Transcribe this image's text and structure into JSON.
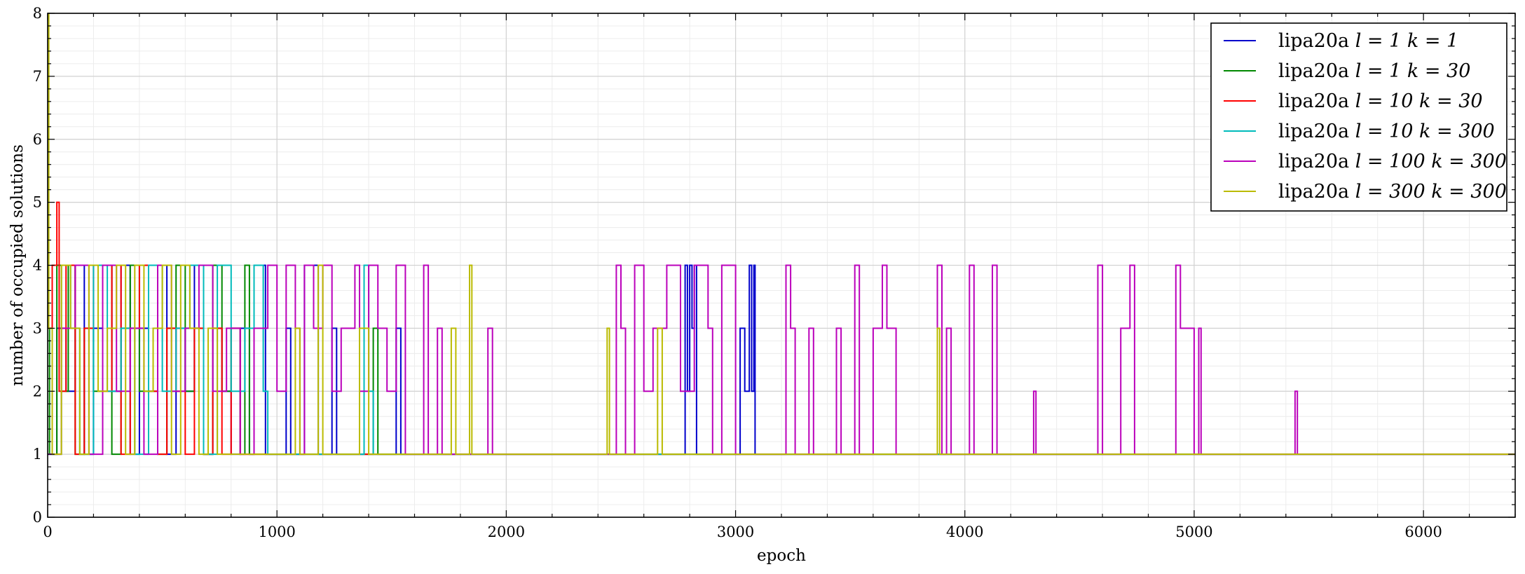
{
  "chart_data": {
    "type": "line",
    "title": "",
    "xlabel": "epoch",
    "ylabel": "number of occupied solutions",
    "xlim": [
      0,
      6400
    ],
    "ylim": [
      0,
      8
    ],
    "x_ticks": [
      0,
      1000,
      2000,
      3000,
      4000,
      5000,
      6000
    ],
    "y_ticks": [
      0,
      1,
      2,
      3,
      4,
      5,
      6,
      7,
      8
    ],
    "grid": true,
    "legend_position": "top-right",
    "series": [
      {
        "name": "lipa20a",
        "legend_params": "l = 1 k = 1",
        "color": "#0000cc",
        "points": [
          [
            0,
            1
          ],
          [
            40,
            3
          ],
          [
            80,
            2
          ],
          [
            120,
            4
          ],
          [
            160,
            1
          ],
          [
            200,
            3
          ],
          [
            240,
            4
          ],
          [
            280,
            2
          ],
          [
            320,
            4
          ],
          [
            360,
            1
          ],
          [
            400,
            3
          ],
          [
            440,
            2
          ],
          [
            480,
            4
          ],
          [
            520,
            1
          ],
          [
            560,
            3
          ],
          [
            600,
            2
          ],
          [
            640,
            4
          ],
          [
            680,
            1
          ],
          [
            720,
            3
          ],
          [
            760,
            2
          ],
          [
            800,
            1
          ],
          [
            840,
            3
          ],
          [
            880,
            1
          ],
          [
            900,
            4
          ],
          [
            950,
            1
          ],
          [
            1040,
            3
          ],
          [
            1060,
            1
          ],
          [
            1120,
            4
          ],
          [
            1180,
            1
          ],
          [
            1240,
            3
          ],
          [
            1260,
            1
          ],
          [
            1520,
            3
          ],
          [
            1540,
            1
          ],
          [
            2440,
            1
          ],
          [
            2780,
            4
          ],
          [
            2790,
            2
          ],
          [
            2800,
            4
          ],
          [
            2810,
            3
          ],
          [
            2820,
            4
          ],
          [
            2830,
            1
          ],
          [
            2980,
            1
          ],
          [
            3020,
            3
          ],
          [
            3040,
            2
          ],
          [
            3060,
            4
          ],
          [
            3070,
            2
          ],
          [
            3080,
            4
          ],
          [
            3085,
            1
          ],
          [
            6400,
            1
          ]
        ]
      },
      {
        "name": "lipa20a",
        "legend_params": "l = 1 k = 30",
        "color": "#008800",
        "points": [
          [
            0,
            1
          ],
          [
            8,
            3
          ],
          [
            20,
            1
          ],
          [
            40,
            4
          ],
          [
            60,
            2
          ],
          [
            90,
            4
          ],
          [
            120,
            1
          ],
          [
            160,
            3
          ],
          [
            200,
            2
          ],
          [
            240,
            4
          ],
          [
            280,
            1
          ],
          [
            320,
            3
          ],
          [
            360,
            4
          ],
          [
            400,
            2
          ],
          [
            440,
            4
          ],
          [
            480,
            1
          ],
          [
            520,
            3
          ],
          [
            560,
            4
          ],
          [
            600,
            2
          ],
          [
            640,
            3
          ],
          [
            680,
            1
          ],
          [
            720,
            4
          ],
          [
            760,
            2
          ],
          [
            800,
            3
          ],
          [
            840,
            1
          ],
          [
            860,
            4
          ],
          [
            880,
            1
          ],
          [
            1420,
            3
          ],
          [
            1440,
            1
          ],
          [
            6400,
            1
          ]
        ]
      },
      {
        "name": "lipa20a",
        "legend_params": "l = 10 k = 30",
        "color": "#ff0000",
        "points": [
          [
            0,
            3
          ],
          [
            20,
            4
          ],
          [
            40,
            5
          ],
          [
            50,
            2
          ],
          [
            80,
            4
          ],
          [
            120,
            1
          ],
          [
            160,
            3
          ],
          [
            200,
            4
          ],
          [
            240,
            2
          ],
          [
            280,
            4
          ],
          [
            320,
            1
          ],
          [
            360,
            3
          ],
          [
            400,
            4
          ],
          [
            440,
            2
          ],
          [
            480,
            1
          ],
          [
            520,
            3
          ],
          [
            560,
            2
          ],
          [
            600,
            1
          ],
          [
            640,
            3
          ],
          [
            680,
            1
          ],
          [
            720,
            3
          ],
          [
            760,
            1
          ],
          [
            800,
            3
          ],
          [
            840,
            1
          ],
          [
            6400,
            1
          ]
        ]
      },
      {
        "name": "lipa20a",
        "legend_params": "l = 10 k = 300",
        "color": "#00bbbb",
        "points": [
          [
            0,
            1
          ],
          [
            60,
            4
          ],
          [
            100,
            3
          ],
          [
            140,
            1
          ],
          [
            200,
            4
          ],
          [
            260,
            2
          ],
          [
            320,
            3
          ],
          [
            380,
            1
          ],
          [
            440,
            4
          ],
          [
            500,
            2
          ],
          [
            560,
            3
          ],
          [
            620,
            4
          ],
          [
            680,
            1
          ],
          [
            740,
            4
          ],
          [
            800,
            2
          ],
          [
            860,
            3
          ],
          [
            900,
            4
          ],
          [
            940,
            2
          ],
          [
            960,
            1
          ],
          [
            1380,
            4
          ],
          [
            1400,
            2
          ],
          [
            1420,
            1
          ],
          [
            6400,
            1
          ]
        ]
      },
      {
        "name": "lipa20a",
        "legend_params": "l = 100 k = 300",
        "color": "#bb00bb",
        "points": [
          [
            0,
            1
          ],
          [
            60,
            3
          ],
          [
            120,
            4
          ],
          [
            180,
            1
          ],
          [
            240,
            4
          ],
          [
            300,
            2
          ],
          [
            360,
            3
          ],
          [
            420,
            1
          ],
          [
            480,
            4
          ],
          [
            540,
            2
          ],
          [
            600,
            3
          ],
          [
            660,
            4
          ],
          [
            720,
            2
          ],
          [
            780,
            3
          ],
          [
            840,
            1
          ],
          [
            900,
            3
          ],
          [
            960,
            4
          ],
          [
            1000,
            2
          ],
          [
            1040,
            4
          ],
          [
            1080,
            3
          ],
          [
            1100,
            1
          ],
          [
            1120,
            4
          ],
          [
            1160,
            3
          ],
          [
            1200,
            4
          ],
          [
            1240,
            2
          ],
          [
            1280,
            3
          ],
          [
            1340,
            4
          ],
          [
            1360,
            2
          ],
          [
            1400,
            4
          ],
          [
            1440,
            3
          ],
          [
            1480,
            2
          ],
          [
            1520,
            4
          ],
          [
            1560,
            1
          ],
          [
            1640,
            4
          ],
          [
            1660,
            1
          ],
          [
            1700,
            3
          ],
          [
            1720,
            1
          ],
          [
            1920,
            3
          ],
          [
            1940,
            1
          ],
          [
            2480,
            4
          ],
          [
            2500,
            3
          ],
          [
            2520,
            1
          ],
          [
            2560,
            4
          ],
          [
            2600,
            2
          ],
          [
            2640,
            3
          ],
          [
            2700,
            4
          ],
          [
            2760,
            2
          ],
          [
            2820,
            4
          ],
          [
            2880,
            3
          ],
          [
            2900,
            1
          ],
          [
            2940,
            4
          ],
          [
            3000,
            1
          ],
          [
            3080,
            1
          ],
          [
            3220,
            4
          ],
          [
            3240,
            3
          ],
          [
            3260,
            1
          ],
          [
            3320,
            3
          ],
          [
            3340,
            1
          ],
          [
            3440,
            3
          ],
          [
            3460,
            1
          ],
          [
            3520,
            4
          ],
          [
            3540,
            1
          ],
          [
            3600,
            3
          ],
          [
            3640,
            4
          ],
          [
            3660,
            3
          ],
          [
            3700,
            1
          ],
          [
            3880,
            4
          ],
          [
            3900,
            1
          ],
          [
            3920,
            3
          ],
          [
            3940,
            1
          ],
          [
            4020,
            4
          ],
          [
            4040,
            1
          ],
          [
            4120,
            4
          ],
          [
            4140,
            1
          ],
          [
            4300,
            2
          ],
          [
            4310,
            1
          ],
          [
            4580,
            4
          ],
          [
            4600,
            1
          ],
          [
            4680,
            3
          ],
          [
            4720,
            4
          ],
          [
            4740,
            1
          ],
          [
            4920,
            4
          ],
          [
            4940,
            3
          ],
          [
            5000,
            1
          ],
          [
            5020,
            3
          ],
          [
            5030,
            1
          ],
          [
            5440,
            2
          ],
          [
            5450,
            1
          ],
          [
            6400,
            1
          ]
        ]
      },
      {
        "name": "lipa20a",
        "legend_params": "l = 300 k = 300",
        "color": "#bbbb00",
        "points": [
          [
            0,
            8
          ],
          [
            5,
            3
          ],
          [
            20,
            1
          ],
          [
            60,
            4
          ],
          [
            100,
            3
          ],
          [
            140,
            1
          ],
          [
            180,
            4
          ],
          [
            220,
            2
          ],
          [
            260,
            3
          ],
          [
            300,
            4
          ],
          [
            340,
            1
          ],
          [
            380,
            4
          ],
          [
            420,
            2
          ],
          [
            460,
            3
          ],
          [
            500,
            4
          ],
          [
            540,
            1
          ],
          [
            580,
            4
          ],
          [
            620,
            3
          ],
          [
            660,
            1
          ],
          [
            700,
            3
          ],
          [
            740,
            1
          ],
          [
            1080,
            3
          ],
          [
            1100,
            1
          ],
          [
            1180,
            4
          ],
          [
            1200,
            1
          ],
          [
            1360,
            3
          ],
          [
            1400,
            1
          ],
          [
            1760,
            3
          ],
          [
            1780,
            1
          ],
          [
            1840,
            4
          ],
          [
            1850,
            1
          ],
          [
            2440,
            3
          ],
          [
            2450,
            1
          ],
          [
            2660,
            3
          ],
          [
            2680,
            1
          ],
          [
            3880,
            3
          ],
          [
            3890,
            1
          ],
          [
            6400,
            1
          ]
        ]
      }
    ]
  }
}
